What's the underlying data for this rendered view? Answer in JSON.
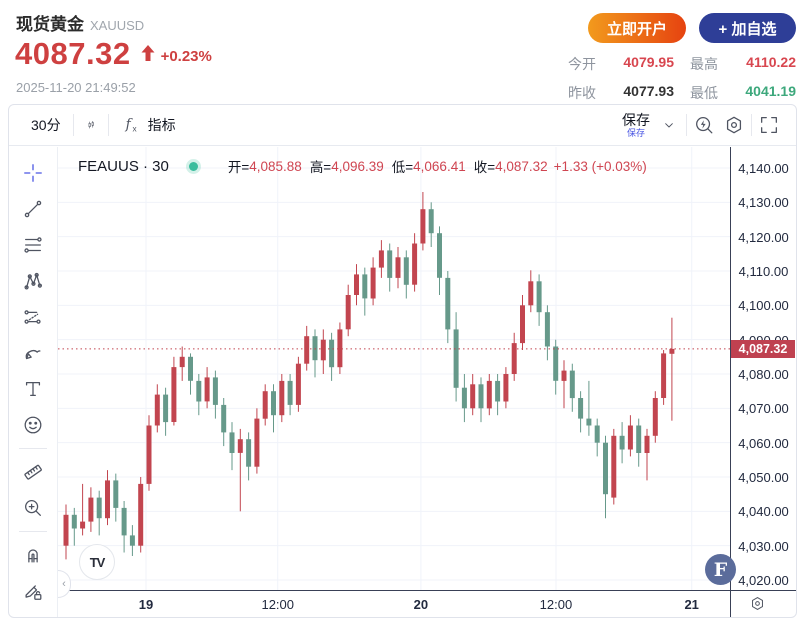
{
  "header": {
    "title": "现货黄金",
    "symbol": "XAUUSD",
    "price": "4087.32",
    "change_percent": "+0.23%",
    "timestamp": "2025-11-20 21:49:52",
    "open_account_label": "立即开户",
    "add_watchlist_label": "+ 加自选",
    "stats": [
      {
        "label": "今开",
        "value": "4079.95",
        "color": "#d8464f"
      },
      {
        "label": "最高",
        "value": "4110.22",
        "color": "#d8464f"
      },
      {
        "label": "昨收",
        "value": "4077.93",
        "color": "#333333"
      },
      {
        "label": "最低",
        "value": "4041.19",
        "color": "#3da87c"
      }
    ]
  },
  "toolbar": {
    "interval_label": "30分",
    "indicators_label": "指标",
    "save_label": "保存",
    "save_tooltip": "保存"
  },
  "sidebar": {
    "tools": [
      "crosshair-icon",
      "trendline-icon",
      "fib-lines-icon",
      "xabcd-pattern-icon",
      "projection-icon",
      "brush-icon",
      "text-icon",
      "emoji-icon",
      "ruler-icon",
      "zoom-in-icon",
      "magnet-icon",
      "lock-drawings-icon"
    ]
  },
  "legend": {
    "series": "FEAUUS · 30",
    "open_label": "开=",
    "open": "4,085.88",
    "high_label": "高=",
    "high": "4,096.39",
    "low_label": "低=",
    "low": "4,066.41",
    "close_label": "收=",
    "close": "4,087.32",
    "change": "+1.33 (+0.03%)"
  },
  "chart_data": {
    "type": "candlestick",
    "symbol": "FEAUUS",
    "interval": "30",
    "title": "FEAUUS · 30",
    "up_color": "#c2454f",
    "down_color": "#66998a",
    "grid": true,
    "legend_position": "top-left",
    "y_min": 4020,
    "y_max": 4140,
    "y_grid": [
      4140,
      4130,
      4120,
      4110,
      4100,
      4090,
      4080,
      4070,
      4060,
      4050,
      4040,
      4030,
      4020
    ],
    "x_ticks": [
      {
        "label": "19",
        "pos": 0.131,
        "bold": true
      },
      {
        "label": "12:00",
        "pos": 0.327,
        "bold": false
      },
      {
        "label": "20",
        "pos": 0.54,
        "bold": true
      },
      {
        "label": "12:00",
        "pos": 0.741,
        "bold": false
      },
      {
        "label": "21",
        "pos": 0.943,
        "bold": true
      }
    ],
    "last_price": "4,087.32",
    "last_price_value": 4087.32,
    "candles": [
      [
        4030,
        4042,
        4026,
        4039
      ],
      [
        4039,
        4041,
        4030,
        4035
      ],
      [
        4035,
        4048,
        4033,
        4037
      ],
      [
        4037,
        4047,
        4034,
        4044
      ],
      [
        4044,
        4046,
        4033,
        4038
      ],
      [
        4038,
        4052,
        4036,
        4049
      ],
      [
        4049,
        4051,
        4037,
        4041
      ],
      [
        4041,
        4043,
        4028,
        4033
      ],
      [
        4033,
        4036,
        4027,
        4030
      ],
      [
        4030,
        4050,
        4028,
        4048
      ],
      [
        4048,
        4068,
        4046,
        4065
      ],
      [
        4065,
        4077,
        4063,
        4074
      ],
      [
        4074,
        4076,
        4062,
        4066
      ],
      [
        4066,
        4085,
        4065,
        4082
      ],
      [
        4082,
        4088,
        4078,
        4085
      ],
      [
        4085,
        4086,
        4074,
        4078
      ],
      [
        4078,
        4080,
        4068,
        4072
      ],
      [
        4072,
        4082,
        4070,
        4079
      ],
      [
        4079,
        4081,
        4067,
        4071
      ],
      [
        4071,
        4073,
        4059,
        4063
      ],
      [
        4063,
        4066,
        4052,
        4057
      ],
      [
        4057,
        4064,
        4040,
        4061
      ],
      [
        4061,
        4063,
        4049,
        4053
      ],
      [
        4053,
        4070,
        4051,
        4067
      ],
      [
        4067,
        4077,
        4065,
        4075
      ],
      [
        4075,
        4077,
        4063,
        4068
      ],
      [
        4068,
        4080,
        4066,
        4078
      ],
      [
        4078,
        4080,
        4068,
        4071
      ],
      [
        4071,
        4085,
        4069,
        4083
      ],
      [
        4083,
        4094,
        4081,
        4091
      ],
      [
        4091,
        4093,
        4079,
        4084
      ],
      [
        4084,
        4093,
        4080,
        4090
      ],
      [
        4090,
        4092,
        4078,
        4082
      ],
      [
        4082,
        4095,
        4080,
        4093
      ],
      [
        4093,
        4106,
        4091,
        4103
      ],
      [
        4103,
        4112,
        4100,
        4109
      ],
      [
        4109,
        4111,
        4097,
        4102
      ],
      [
        4102,
        4114,
        4100,
        4111
      ],
      [
        4111,
        4119,
        4108,
        4116
      ],
      [
        4116,
        4118,
        4104,
        4108
      ],
      [
        4108,
        4117,
        4105,
        4114
      ],
      [
        4114,
        4116,
        4102,
        4106
      ],
      [
        4106,
        4121,
        4104,
        4118
      ],
      [
        4118,
        4133,
        4116,
        4128
      ],
      [
        4128,
        4130,
        4117,
        4121
      ],
      [
        4121,
        4123,
        4103,
        4108
      ],
      [
        4108,
        4110,
        4089,
        4093
      ],
      [
        4093,
        4098,
        4072,
        4076
      ],
      [
        4076,
        4080,
        4066,
        4070
      ],
      [
        4070,
        4080,
        4068,
        4077
      ],
      [
        4077,
        4079,
        4066,
        4070
      ],
      [
        4070,
        4080,
        4068,
        4078
      ],
      [
        4078,
        4080,
        4068,
        4072
      ],
      [
        4072,
        4082,
        4070,
        4080
      ],
      [
        4080,
        4092,
        4078,
        4089
      ],
      [
        4089,
        4103,
        4087,
        4100
      ],
      [
        4100,
        4110.2,
        4098,
        4107
      ],
      [
        4107,
        4109,
        4094,
        4098
      ],
      [
        4098,
        4100,
        4084,
        4088
      ],
      [
        4088,
        4090,
        4074,
        4078
      ],
      [
        4078,
        4084,
        4070,
        4081
      ],
      [
        4081,
        4083,
        4069,
        4073
      ],
      [
        4073,
        4075,
        4063,
        4067
      ],
      [
        4067,
        4078,
        4062,
        4065
      ],
      [
        4065,
        4067,
        4056,
        4060
      ],
      [
        4060,
        4062,
        4038,
        4045
      ],
      [
        4044,
        4064,
        4042,
        4062
      ],
      [
        4062,
        4066,
        4054,
        4058
      ],
      [
        4058,
        4068,
        4056,
        4065
      ],
      [
        4065,
        4067,
        4053,
        4057
      ],
      [
        4057,
        4064,
        4049,
        4062
      ],
      [
        4062,
        4075,
        4060,
        4073
      ],
      [
        4073,
        4087,
        4071,
        4085.99
      ],
      [
        4085.88,
        4096.39,
        4066.41,
        4087.32
      ]
    ]
  }
}
